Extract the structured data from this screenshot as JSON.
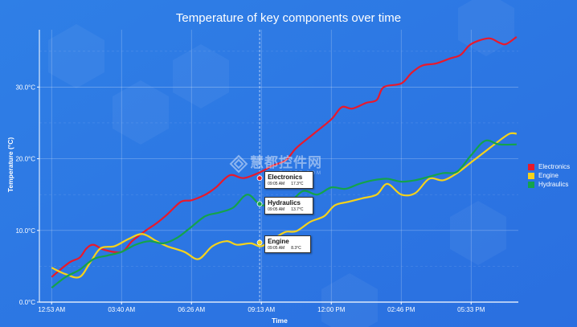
{
  "chart_data": {
    "type": "line",
    "title": "Temperature of key components over time",
    "xlabel": "Time",
    "ylabel": "Temperature (°C)",
    "x_ticks": [
      "12:53 AM",
      "03:40 AM",
      "06:26 AM",
      "09:13 AM",
      "12:00 PM",
      "02:46 PM",
      "05:33 PM"
    ],
    "y_ticks": [
      "0.0°C",
      "10.0°C",
      "20.0°C",
      "30.0°C"
    ],
    "ylim": [
      0,
      38
    ],
    "grid": true,
    "legend_position": "right",
    "series": [
      {
        "name": "Electronics",
        "color": "#e8192c",
        "points": [
          [
            0,
            3.5
          ],
          [
            0.5,
            5.5
          ],
          [
            0.8,
            6.2
          ],
          [
            1.0,
            7.5
          ],
          [
            1.2,
            8.0
          ],
          [
            1.5,
            7.3
          ],
          [
            2.0,
            7.0
          ],
          [
            2.3,
            8.5
          ],
          [
            2.7,
            10.0
          ],
          [
            3.0,
            11.0
          ],
          [
            3.3,
            12.2
          ],
          [
            3.7,
            14.0
          ],
          [
            4.0,
            14.2
          ],
          [
            4.4,
            15.0
          ],
          [
            4.7,
            16.0
          ],
          [
            5.1,
            17.7
          ],
          [
            5.5,
            17.3
          ],
          [
            6.0,
            18.2
          ],
          [
            6.3,
            19.0
          ],
          [
            6.7,
            19.8
          ],
          [
            7.0,
            21.5
          ],
          [
            7.5,
            23.5
          ],
          [
            8.0,
            25.5
          ],
          [
            8.3,
            27.2
          ],
          [
            8.6,
            27.0
          ],
          [
            9.0,
            27.8
          ],
          [
            9.3,
            28.2
          ],
          [
            9.5,
            30.0
          ],
          [
            10.0,
            30.5
          ],
          [
            10.3,
            32.0
          ],
          [
            10.6,
            33.0
          ],
          [
            11.0,
            33.3
          ],
          [
            11.4,
            34.0
          ],
          [
            11.7,
            34.5
          ],
          [
            12.0,
            36.0
          ],
          [
            12.5,
            36.8
          ],
          [
            12.8,
            36.2
          ],
          [
            13.0,
            36.0
          ],
          [
            13.3,
            37.0
          ]
        ]
      },
      {
        "name": "Engine",
        "color": "#f5d21b",
        "points": [
          [
            0,
            4.8
          ],
          [
            0.4,
            3.9
          ],
          [
            0.8,
            3.5
          ],
          [
            1.1,
            5.5
          ],
          [
            1.4,
            7.5
          ],
          [
            1.8,
            7.8
          ],
          [
            2.2,
            8.8
          ],
          [
            2.6,
            9.5
          ],
          [
            3.0,
            8.5
          ],
          [
            3.3,
            7.8
          ],
          [
            3.8,
            7.0
          ],
          [
            4.2,
            6.0
          ],
          [
            4.6,
            7.8
          ],
          [
            5.0,
            8.5
          ],
          [
            5.3,
            8.0
          ],
          [
            5.7,
            8.2
          ],
          [
            6.0,
            7.8
          ],
          [
            6.4,
            9.0
          ],
          [
            6.7,
            9.8
          ],
          [
            7.0,
            9.9
          ],
          [
            7.4,
            11.2
          ],
          [
            7.8,
            12.0
          ],
          [
            8.1,
            13.5
          ],
          [
            8.5,
            14.0
          ],
          [
            8.9,
            14.5
          ],
          [
            9.3,
            15.0
          ],
          [
            9.6,
            16.5
          ],
          [
            10.0,
            15.0
          ],
          [
            10.4,
            15.2
          ],
          [
            10.8,
            17.2
          ],
          [
            11.2,
            17.0
          ],
          [
            11.6,
            18.0
          ],
          [
            12.0,
            19.5
          ],
          [
            12.4,
            21.0
          ],
          [
            12.8,
            22.5
          ],
          [
            13.1,
            23.5
          ],
          [
            13.3,
            23.5
          ]
        ]
      },
      {
        "name": "Hydraulics",
        "color": "#14a34b",
        "points": [
          [
            0,
            2.0
          ],
          [
            0.4,
            3.5
          ],
          [
            0.8,
            4.5
          ],
          [
            1.2,
            6.0
          ],
          [
            1.6,
            6.5
          ],
          [
            2.0,
            7.0
          ],
          [
            2.4,
            8.0
          ],
          [
            2.8,
            8.5
          ],
          [
            3.2,
            8.2
          ],
          [
            3.6,
            9.0
          ],
          [
            4.0,
            10.5
          ],
          [
            4.4,
            12.0
          ],
          [
            4.8,
            12.5
          ],
          [
            5.2,
            13.2
          ],
          [
            5.6,
            15.0
          ],
          [
            6.0,
            13.5
          ],
          [
            6.4,
            14.2
          ],
          [
            6.8,
            14.0
          ],
          [
            7.2,
            15.5
          ],
          [
            7.6,
            15.0
          ],
          [
            8.0,
            16.0
          ],
          [
            8.4,
            15.8
          ],
          [
            8.8,
            16.5
          ],
          [
            9.2,
            17.0
          ],
          [
            9.6,
            17.2
          ],
          [
            10.0,
            16.8
          ],
          [
            10.4,
            17.0
          ],
          [
            10.8,
            17.5
          ],
          [
            11.2,
            18.0
          ],
          [
            11.6,
            18.2
          ],
          [
            12.0,
            20.5
          ],
          [
            12.4,
            22.5
          ],
          [
            12.8,
            22.0
          ],
          [
            13.3,
            22.0
          ]
        ]
      }
    ]
  },
  "tooltips": [
    {
      "title": "Electronics",
      "time": "09:05 AM",
      "value": "17.3°C",
      "color": "#e8192c",
      "x": 5.95,
      "y": 17.3
    },
    {
      "title": "Hydraulics",
      "time": "09:05 AM",
      "value": "13.7°C",
      "color": "#14a34b",
      "x": 5.95,
      "y": 13.7
    },
    {
      "title": "Engine",
      "time": "09:05 AM",
      "value": "8.3°C",
      "color": "#f5d21b",
      "x": 5.95,
      "y": 8.3
    }
  ],
  "watermark": {
    "main": "慧都控件网",
    "sub": "EVGET.COM"
  }
}
